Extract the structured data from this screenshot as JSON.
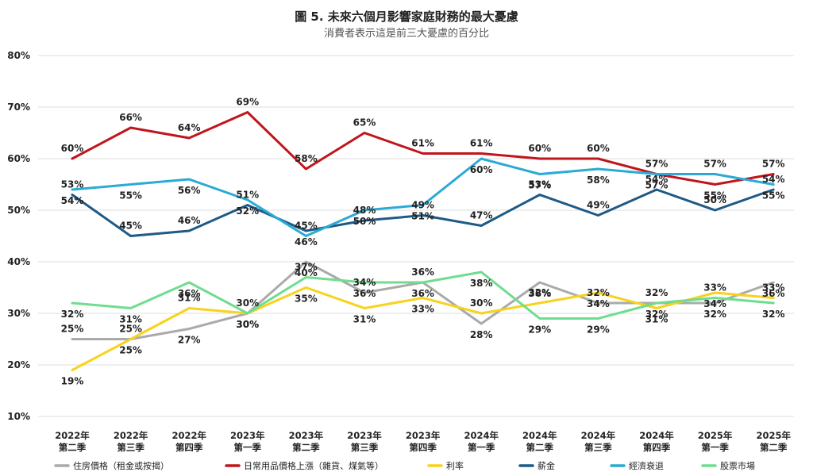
{
  "chart_data": {
    "type": "line",
    "title": "圖 5. 未來六個月影響家庭財務的最大憂慮",
    "subtitle": "消費者表示這是前三大憂慮的百分比",
    "y_ticks": [
      "10%",
      "20%",
      "30%",
      "40%",
      "50%",
      "60%",
      "70%",
      "80%"
    ],
    "ylim": [
      10,
      80
    ],
    "grid": true,
    "legend_position": "bottom",
    "categories": [
      [
        "2022年",
        "第二季"
      ],
      [
        "2022年",
        "第三季"
      ],
      [
        "2022年",
        "第四季"
      ],
      [
        "2023年",
        "第一季"
      ],
      [
        "2023年",
        "第二季"
      ],
      [
        "2023年",
        "第三季"
      ],
      [
        "2023年",
        "第四季"
      ],
      [
        "2024年",
        "第一季"
      ],
      [
        "2024年",
        "第二季"
      ],
      [
        "2024年",
        "第三季"
      ],
      [
        "2024年",
        "第四季"
      ],
      [
        "2025年",
        "第一季"
      ],
      [
        "2025年",
        "第二季"
      ]
    ],
    "series": [
      {
        "name": "住房價格（租金或按揭）",
        "color": "#aaaaaa",
        "values": [
          25,
          25,
          27,
          30,
          40,
          34,
          36,
          28,
          36,
          32,
          32,
          32,
          36
        ]
      },
      {
        "name": "日常用品價格上漲（雜貨、煤氣等）",
        "color": "#c0151b",
        "values": [
          60,
          66,
          64,
          69,
          58,
          65,
          61,
          61,
          60,
          60,
          57,
          55,
          57
        ]
      },
      {
        "name": "利率",
        "color": "#f8d21c",
        "values": [
          19,
          25,
          31,
          30,
          35,
          31,
          33,
          30,
          32,
          34,
          31,
          34,
          33
        ]
      },
      {
        "name": "薪金",
        "color": "#1f5a86",
        "values": [
          53,
          45,
          46,
          51,
          46,
          48,
          49,
          47,
          53,
          49,
          54,
          50,
          54
        ]
      },
      {
        "name": "經濟衰退",
        "color": "#2aaad4",
        "values": [
          54,
          55,
          56,
          52,
          45,
          50,
          51,
          60,
          57,
          58,
          57,
          57,
          55
        ]
      },
      {
        "name": "股票市場",
        "color": "#6edd8e",
        "values": [
          32,
          31,
          36,
          30,
          37,
          36,
          36,
          38,
          29,
          29,
          32,
          33,
          32
        ]
      }
    ]
  }
}
